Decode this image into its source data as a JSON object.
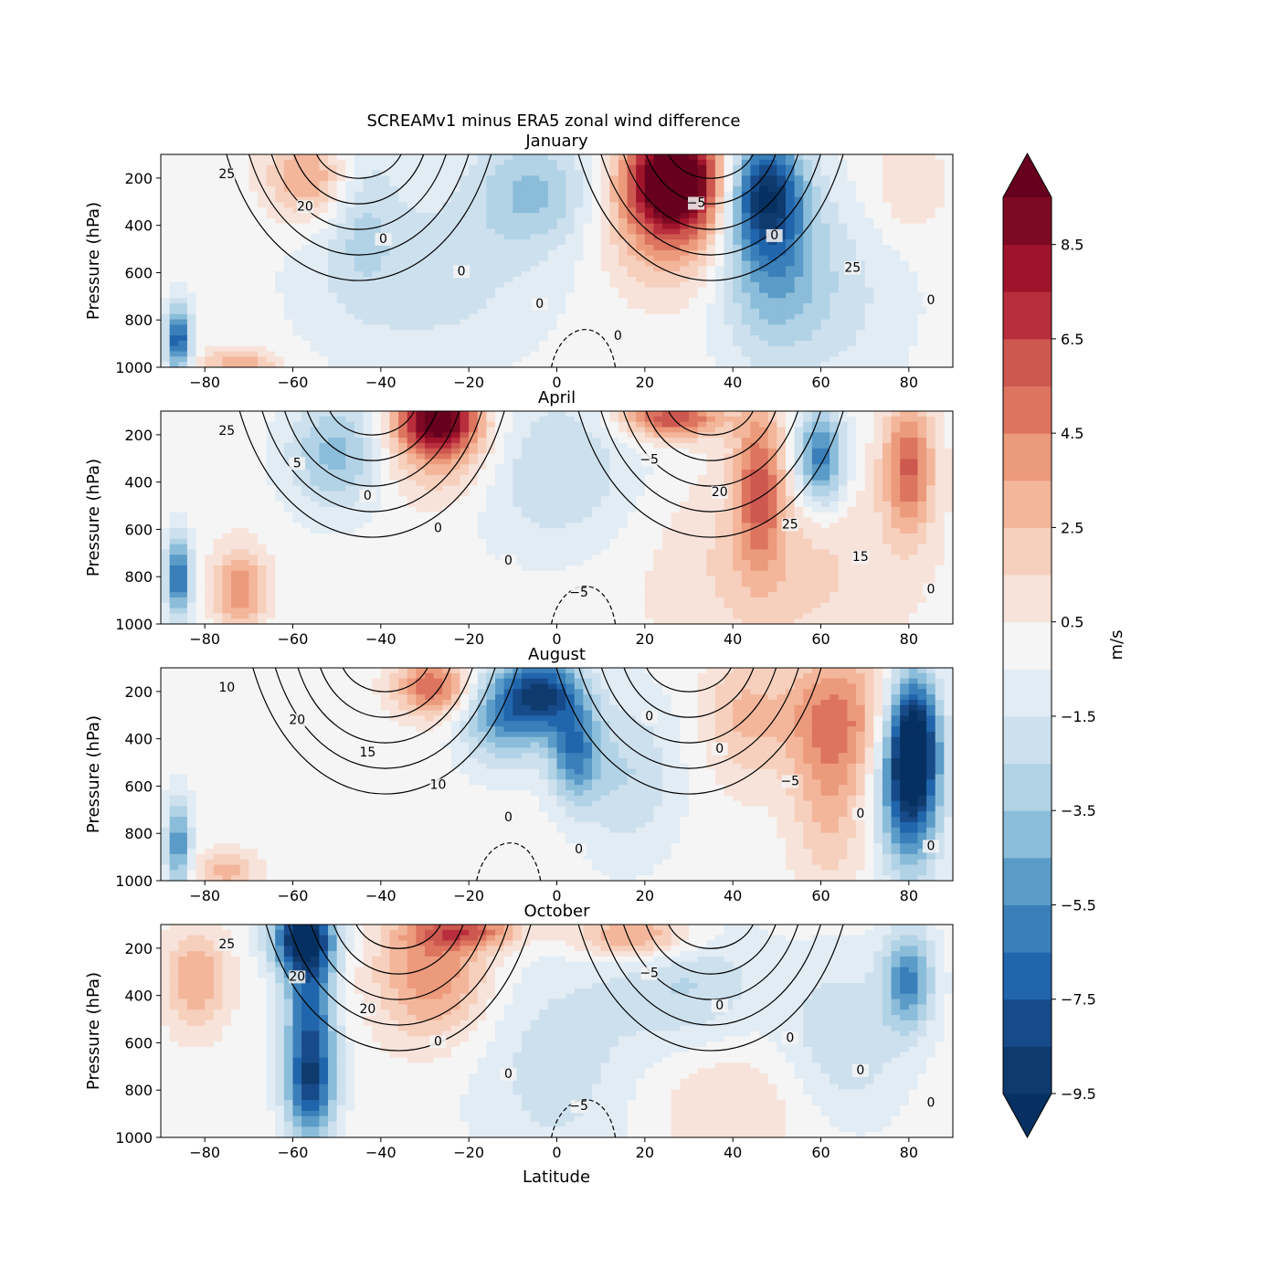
{
  "chart_data": {
    "type": "heatmap",
    "title": "SCREAMv1 minus ERA5 zonal wind difference",
    "xlabel": "Latitude",
    "ylabel": "Pressure (hPa)",
    "xlim": [
      -90,
      90
    ],
    "ylim": [
      1000,
      100
    ],
    "xticks": [
      -80,
      -60,
      -40,
      -20,
      0,
      20,
      40,
      60,
      80
    ],
    "yticks": [
      200,
      400,
      600,
      800,
      1000
    ],
    "colorbar": {
      "label": "m/s",
      "cmap": "RdBu_r",
      "levels": [
        -9.5,
        -8.5,
        -7.5,
        -6.5,
        -5.5,
        -4.5,
        -3.5,
        -2.5,
        -1.5,
        -0.5,
        0.5,
        1.5,
        2.5,
        3.5,
        4.5,
        5.5,
        6.5,
        7.5,
        8.5,
        9.5
      ],
      "tick_labels": [
        "−9.5",
        "−7.5",
        "−5.5",
        "−3.5",
        "−1.5",
        "0.5",
        "2.5",
        "4.5",
        "6.5",
        "8.5"
      ],
      "extend": "both",
      "colors": [
        "#0e3a6e",
        "#174a89",
        "#2166ac",
        "#3a7fb9",
        "#5a9bc8",
        "#8bbdda",
        "#b2d2e6",
        "#cde0ee",
        "#e2ecf4",
        "#f5f5f5",
        "#f8e3da",
        "#f6d0bd",
        "#f3b69b",
        "#ec9a7c",
        "#dc7460",
        "#cd5850",
        "#b92e3c",
        "#9f142b",
        "#7d0a22"
      ],
      "under_color": "#053061",
      "over_color": "#67001f"
    },
    "panels": [
      {
        "title": "January",
        "contour_labels": [
          "25",
          "20",
          "0",
          "0",
          "0",
          "0",
          "−5",
          "0",
          "25",
          "0"
        ],
        "features": [
          {
            "lat": 27,
            "p": 190,
            "v": 9.2,
            "wlat": 7,
            "wp": 140
          },
          {
            "lat": 26,
            "p": 330,
            "v": 5.5,
            "wlat": 10,
            "wp": 220
          },
          {
            "lat": 47,
            "p": 250,
            "v": -7.2,
            "wlat": 6,
            "wp": 170
          },
          {
            "lat": 48,
            "p": 500,
            "v": -4.0,
            "wlat": 8,
            "wp": 280
          },
          {
            "lat": -56,
            "p": 200,
            "v": 4.0,
            "wlat": 7,
            "wp": 130
          },
          {
            "lat": -45,
            "p": 300,
            "v": -2.0,
            "wlat": 6,
            "wp": 250
          },
          {
            "lat": -5,
            "p": 250,
            "v": -3.5,
            "wlat": 10,
            "wp": 170
          },
          {
            "lat": -30,
            "p": 620,
            "v": -2.0,
            "wlat": 20,
            "wp": 280
          },
          {
            "lat": -86,
            "p": 880,
            "v": -7.5,
            "wlat": 2,
            "wp": 100
          },
          {
            "lat": -72,
            "p": 980,
            "v": 3.5,
            "wlat": 6,
            "wp": 40
          },
          {
            "lat": 80,
            "p": 250,
            "v": 1.5,
            "wlat": 6,
            "wp": 150
          },
          {
            "lat": 60,
            "p": 700,
            "v": -2.0,
            "wlat": 14,
            "wp": 300
          }
        ]
      },
      {
        "title": "April",
        "contour_labels": [
          "25",
          "5",
          "0",
          "0",
          "0",
          "−5",
          "−5",
          "20",
          "25",
          "15",
          "0"
        ],
        "features": [
          {
            "lat": -27,
            "p": 140,
            "v": 8.5,
            "wlat": 6,
            "wp": 80
          },
          {
            "lat": -27,
            "p": 240,
            "v": 4.0,
            "wlat": 9,
            "wp": 160
          },
          {
            "lat": 26,
            "p": 130,
            "v": 6.5,
            "wlat": 8,
            "wp": 60
          },
          {
            "lat": -50,
            "p": 280,
            "v": -4.0,
            "wlat": 8,
            "wp": 170
          },
          {
            "lat": 60,
            "p": 300,
            "v": -6.5,
            "wlat": 4,
            "wp": 150
          },
          {
            "lat": 46,
            "p": 400,
            "v": 5.0,
            "wlat": 4,
            "wp": 250
          },
          {
            "lat": 80,
            "p": 330,
            "v": 5.5,
            "wlat": 4,
            "wp": 200
          },
          {
            "lat": -72,
            "p": 850,
            "v": 4.5,
            "wlat": 4,
            "wp": 120
          },
          {
            "lat": -86,
            "p": 800,
            "v": -7.0,
            "wlat": 2,
            "wp": 120
          },
          {
            "lat": 0,
            "p": 350,
            "v": -2.5,
            "wlat": 14,
            "wp": 250
          },
          {
            "lat": 50,
            "p": 750,
            "v": 2.0,
            "wlat": 20,
            "wp": 300
          }
        ]
      },
      {
        "title": "August",
        "contour_labels": [
          "10",
          "20",
          "15",
          "10",
          "0",
          "0",
          "0",
          "0",
          "−5",
          "0",
          "0"
        ],
        "features": [
          {
            "lat": 81,
            "p": 400,
            "v": -9.3,
            "wlat": 4,
            "wp": 200
          },
          {
            "lat": 80,
            "p": 650,
            "v": -6.5,
            "wlat": 5,
            "wp": 250
          },
          {
            "lat": -3,
            "p": 200,
            "v": -7.0,
            "wlat": 6,
            "wp": 110
          },
          {
            "lat": -12,
            "p": 300,
            "v": -5.0,
            "wlat": 7,
            "wp": 150
          },
          {
            "lat": 4,
            "p": 450,
            "v": -5.5,
            "wlat": 4,
            "wp": 150
          },
          {
            "lat": -28,
            "p": 180,
            "v": 5.5,
            "wlat": 6,
            "wp": 90
          },
          {
            "lat": 63,
            "p": 300,
            "v": 4.5,
            "wlat": 9,
            "wp": 200
          },
          {
            "lat": 62,
            "p": 700,
            "v": 2.5,
            "wlat": 6,
            "wp": 250
          },
          {
            "lat": 42,
            "p": 300,
            "v": 2.5,
            "wlat": 6,
            "wp": 200
          },
          {
            "lat": -86,
            "p": 850,
            "v": -5.5,
            "wlat": 2,
            "wp": 140
          },
          {
            "lat": -75,
            "p": 960,
            "v": 3.0,
            "wlat": 5,
            "wp": 60
          },
          {
            "lat": 16,
            "p": 550,
            "v": -2.5,
            "wlat": 8,
            "wp": 250
          }
        ]
      },
      {
        "title": "October",
        "contour_labels": [
          "25",
          "20",
          "20",
          "0",
          "0",
          "−5",
          "−5",
          "0",
          "0",
          "0",
          "0"
        ],
        "features": [
          {
            "lat": -58,
            "p": 150,
            "v": -8.5,
            "wlat": 5,
            "wp": 110
          },
          {
            "lat": -56,
            "p": 450,
            "v": -6.5,
            "wlat": 4,
            "wp": 250
          },
          {
            "lat": -56,
            "p": 800,
            "v": -6.0,
            "wlat": 4,
            "wp": 160
          },
          {
            "lat": -28,
            "p": 300,
            "v": 4.5,
            "wlat": 9,
            "wp": 200
          },
          {
            "lat": -20,
            "p": 130,
            "v": 4.5,
            "wlat": 9,
            "wp": 50
          },
          {
            "lat": 18,
            "p": 150,
            "v": 4.5,
            "wlat": 10,
            "wp": 70
          },
          {
            "lat": -82,
            "p": 330,
            "v": 3.5,
            "wlat": 5,
            "wp": 150
          },
          {
            "lat": 80,
            "p": 330,
            "v": -5.5,
            "wlat": 4,
            "wp": 150
          },
          {
            "lat": 30,
            "p": 350,
            "v": -2.5,
            "wlat": 12,
            "wp": 200
          },
          {
            "lat": 65,
            "p": 600,
            "v": -2.5,
            "wlat": 10,
            "wp": 250
          },
          {
            "lat": 0,
            "p": 700,
            "v": -2.0,
            "wlat": 14,
            "wp": 350
          },
          {
            "lat": 40,
            "p": 850,
            "v": 1.5,
            "wlat": 15,
            "wp": 200
          }
        ]
      }
    ]
  }
}
